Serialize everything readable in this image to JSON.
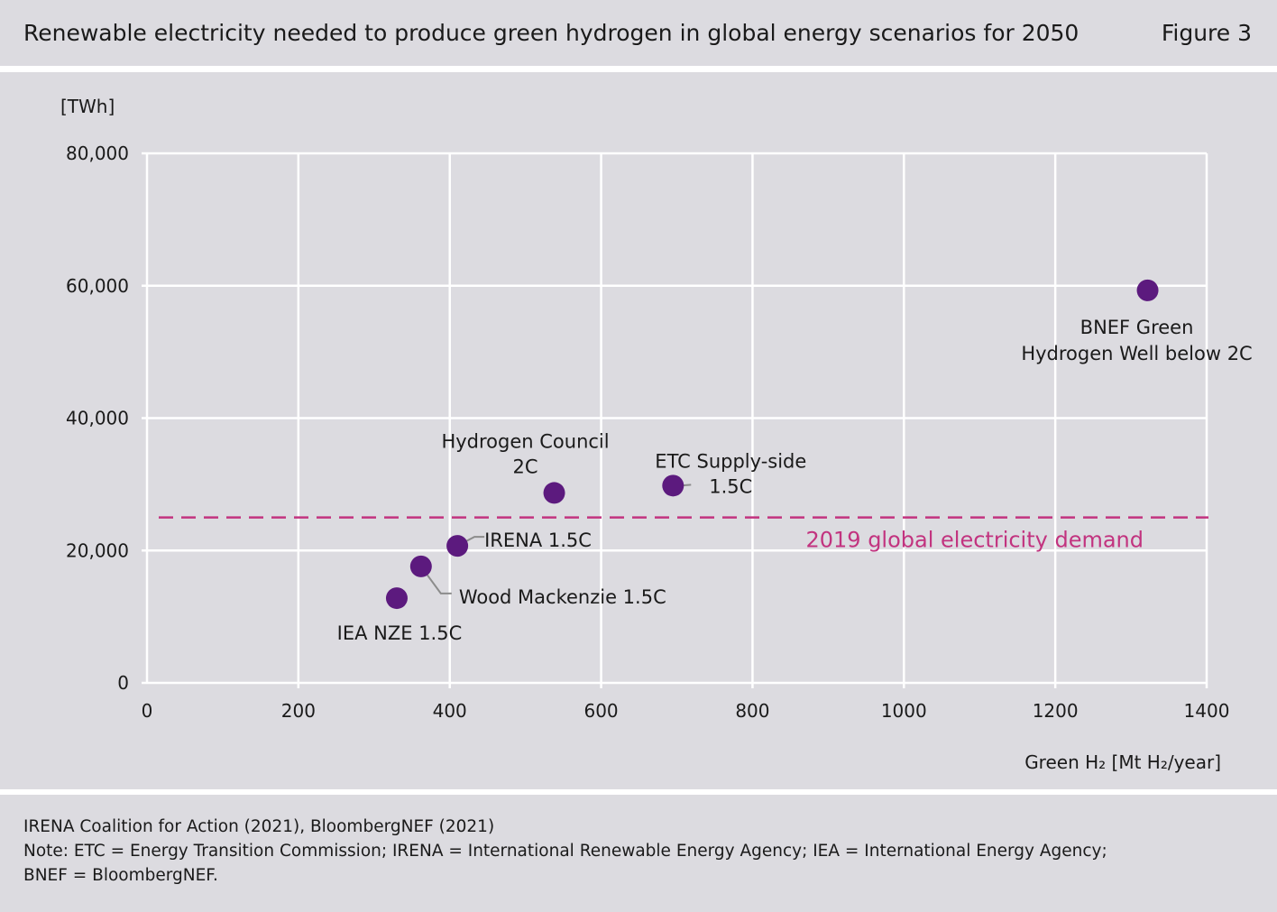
{
  "header": {
    "title": "Renewable electricity needed to produce green hydrogen in global energy scenarios for 2050",
    "figure_label": "Figure 3"
  },
  "chart_data": {
    "type": "scatter",
    "ylabel": "[TWh]",
    "xlabel": "Green H₂ [Mt H₂/year]",
    "xlim": [
      0,
      1400
    ],
    "ylim": [
      0,
      80000
    ],
    "x_ticks": [
      0,
      200,
      400,
      600,
      800,
      1000,
      1200,
      1400
    ],
    "x_tick_labels": [
      "0",
      "200",
      "400",
      "600",
      "800",
      "1000",
      "1200",
      "1400"
    ],
    "y_ticks": [
      0,
      20000,
      40000,
      60000,
      80000
    ],
    "y_tick_labels": [
      "0",
      "20,000",
      "40,000",
      "60,000",
      "80,000"
    ],
    "grid": true,
    "point_color": "#5c1a7e",
    "points": [
      {
        "label": "IEA NZE 1.5C",
        "x": 330,
        "y": 12800
      },
      {
        "label": "Wood Mackenzie 1.5C",
        "x": 362,
        "y": 17600
      },
      {
        "label": "IRENA 1.5C",
        "x": 410,
        "y": 20700
      },
      {
        "label": "Hydrogen Council 2C",
        "x": 538,
        "y": 28700
      },
      {
        "label": "ETC Supply-side 1.5C",
        "x": 695,
        "y": 29800
      },
      {
        "label": "BNEF Green Hydrogen Well below 2C",
        "x": 1322,
        "y": 59300
      }
    ],
    "reference_line": {
      "label": "2019 global electricity demand",
      "y": 25000,
      "color": "#c2337f",
      "style": "dashed"
    }
  },
  "footer": {
    "source": "IRENA Coalition for Action (2021), BloombergNEF (2021)",
    "note_1": "Note: ETC = Energy Transition Commission; IRENA = International Renewable Energy Agency; IEA = International Energy Agency;",
    "note_2": "BNEF = BloombergNEF."
  }
}
